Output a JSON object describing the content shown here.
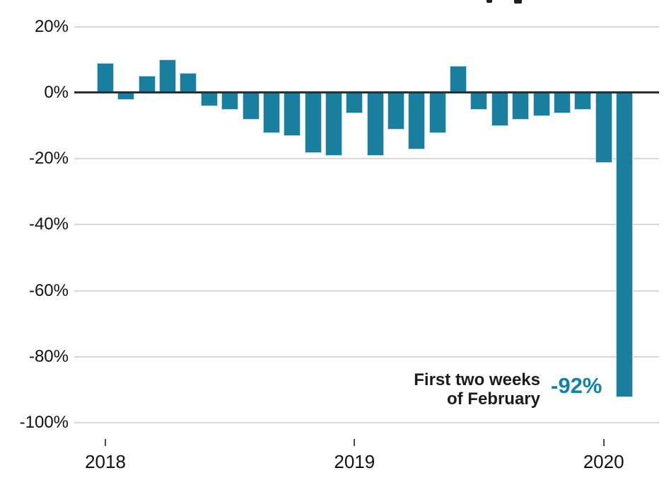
{
  "chart_data": {
    "type": "bar",
    "title": "",
    "note": "chart title cropped off at top edge; only two letter descenders visible",
    "x": [
      "Jan 2018",
      "Feb 2018",
      "Mar 2018",
      "Apr 2018",
      "May 2018",
      "Jun 2018",
      "Jul 2018",
      "Aug 2018",
      "Sep 2018",
      "Oct 2018",
      "Nov 2018",
      "Dec 2018",
      "Jan 2019",
      "Feb 2019",
      "Mar 2019",
      "Apr 2019",
      "May 2019",
      "Jun 2019",
      "Jul 2019",
      "Aug 2019",
      "Sep 2019",
      "Oct 2019",
      "Nov 2019",
      "Dec 2019",
      "Jan 2020",
      "Feb 2020"
    ],
    "values": [
      9,
      -2,
      5,
      10,
      6,
      -4,
      -5,
      -8,
      -12,
      -13,
      -18,
      -19,
      -6,
      -19,
      -11,
      -17,
      -12,
      8,
      -5,
      -10,
      -8,
      -7,
      -6,
      -5,
      -21,
      -92
    ],
    "ylim": [
      -100,
      20
    ],
    "yticks": {
      "values": [
        20,
        0,
        -20,
        -40,
        -60,
        -80,
        -100
      ],
      "labels": [
        "20%",
        "0%",
        "-20%",
        "-40%",
        "-60%",
        "-80%",
        "-100%"
      ]
    },
    "xticks": {
      "month_indexes": [
        0,
        12,
        24
      ],
      "labels": [
        "2018",
        "2019",
        "2020"
      ]
    },
    "grid": "horizontal-light, dark zero baseline",
    "legend": "none",
    "annotation": {
      "line1": "First two weeks",
      "line2": "of February",
      "value_label": "-92%",
      "applies_to": "Feb 2020"
    },
    "colors": {
      "bar": "#1a7f9e",
      "bar_edge": "#bcdbe8",
      "annotation_value": "#1182a9",
      "annotation_text": "#1c1c1c",
      "zero_line": "#2e2e2e",
      "gridline": "#d8d8d8",
      "axis_text": "#111111"
    }
  }
}
